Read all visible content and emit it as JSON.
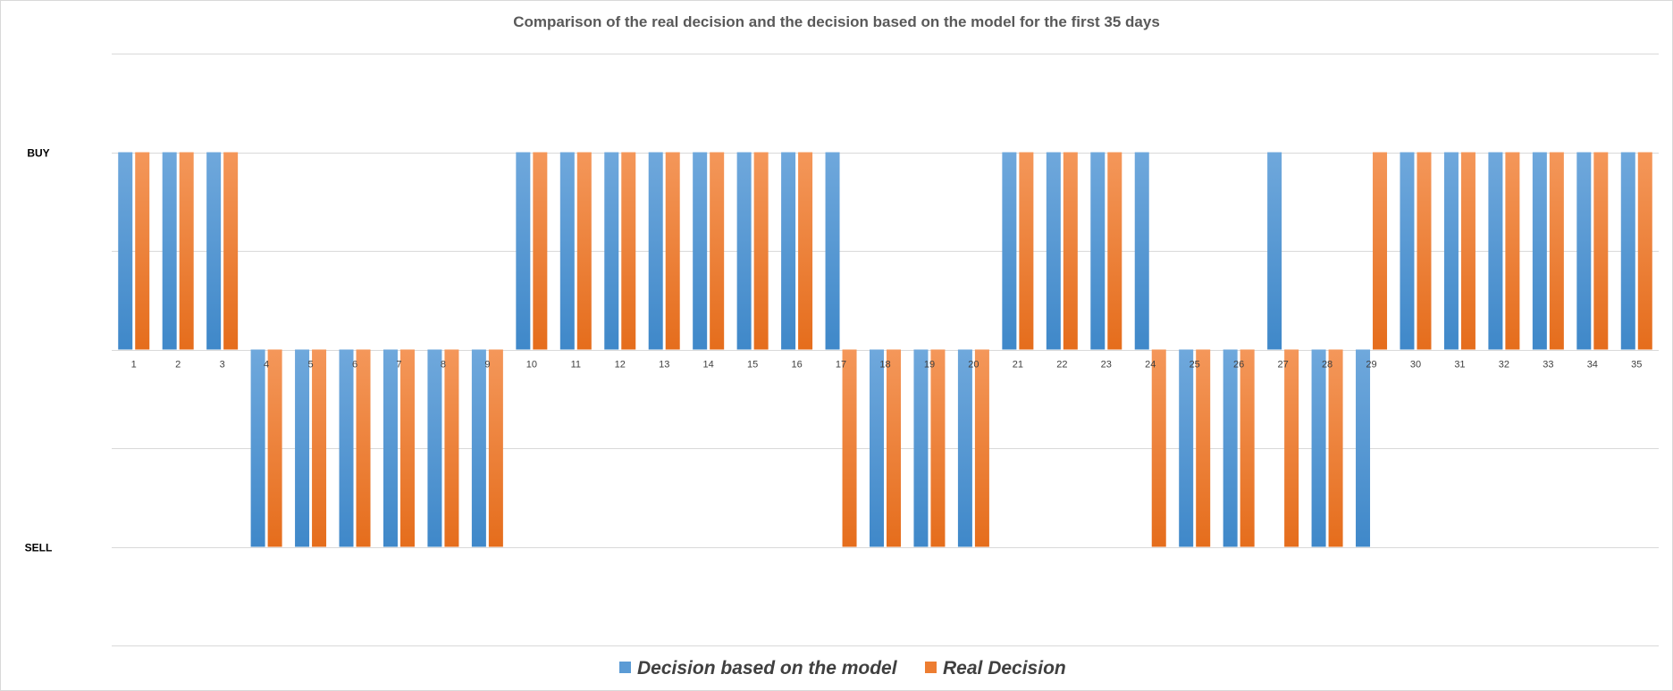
{
  "chart_data": {
    "type": "bar",
    "title": "Comparison  of the real decision and the decision based on the model for the first 35 days",
    "xlabel": "",
    "ylabel": "",
    "y_tick_labels": [
      {
        "value": 1,
        "label": "BUY"
      },
      {
        "value": -1,
        "label": "SELL"
      }
    ],
    "ylim": [
      -1.5,
      1.5
    ],
    "grid": true,
    "legend_position": "bottom",
    "categories": [
      "1",
      "2",
      "3",
      "4",
      "5",
      "6",
      "7",
      "8",
      "9",
      "10",
      "11",
      "12",
      "13",
      "14",
      "15",
      "16",
      "17",
      "18",
      "19",
      "20",
      "21",
      "22",
      "23",
      "24",
      "25",
      "26",
      "27",
      "28",
      "29",
      "30",
      "31",
      "32",
      "33",
      "34",
      "35"
    ],
    "series": [
      {
        "name": "Decision based on the model",
        "color": "#5b9bd5",
        "values": [
          1,
          1,
          1,
          -1,
          -1,
          -1,
          -1,
          -1,
          -1,
          1,
          1,
          1,
          1,
          1,
          1,
          1,
          1,
          -1,
          -1,
          -1,
          1,
          1,
          1,
          1,
          -1,
          -1,
          1,
          -1,
          -1,
          1,
          1,
          1,
          1,
          1,
          1
        ]
      },
      {
        "name": "Real Decision",
        "color": "#ed7d31",
        "values": [
          1,
          1,
          1,
          -1,
          -1,
          -1,
          -1,
          -1,
          -1,
          1,
          1,
          1,
          1,
          1,
          1,
          1,
          -1,
          -1,
          -1,
          -1,
          1,
          1,
          1,
          -1,
          -1,
          -1,
          -1,
          -1,
          1,
          1,
          1,
          1,
          1,
          1,
          1
        ]
      }
    ]
  }
}
